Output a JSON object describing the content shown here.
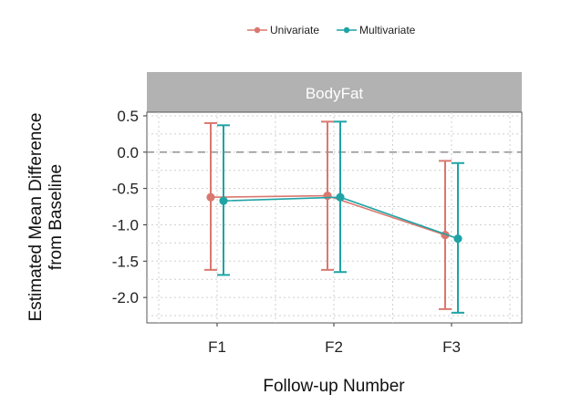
{
  "chart_data": {
    "type": "line",
    "facet_label": "BodyFat",
    "xlabel": "Follow-up Number",
    "ylabel_lines": [
      "Estimated Mean Difference",
      "from Baseline"
    ],
    "categories": [
      "F1",
      "F2",
      "F3"
    ],
    "ylim": [
      -2.35,
      0.55
    ],
    "yticks": [
      0.5,
      0.0,
      -0.5,
      -1.0,
      -1.5,
      -2.0
    ],
    "ytick_labels": [
      "0.5",
      "0.0",
      "-0.5",
      "-1.0",
      "-1.5",
      "-2.0"
    ],
    "reference_line": 0,
    "grid": true,
    "legend_position": "top",
    "series": [
      {
        "name": "Univariate",
        "color": "#D9786F",
        "values": [
          -0.62,
          -0.6,
          -1.14
        ],
        "lower": [
          -1.62,
          -1.62,
          -2.16
        ],
        "upper": [
          0.4,
          0.42,
          -0.12
        ]
      },
      {
        "name": "Multivariate",
        "color": "#1FA3A5",
        "values": [
          -0.67,
          -0.62,
          -1.19
        ],
        "lower": [
          -1.69,
          -1.65,
          -2.21
        ],
        "upper": [
          0.37,
          0.42,
          -0.15
        ]
      }
    ]
  }
}
